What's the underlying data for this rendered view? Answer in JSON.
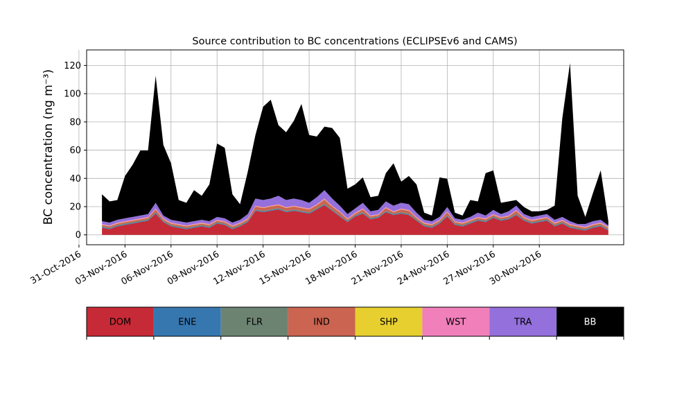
{
  "chart_data": {
    "type": "area",
    "stacked": true,
    "title": "Source contribution to BC concentrations (ECLIPSEv6 and CAMS)",
    "xlabel": "",
    "ylabel": "BC concentration (ng m⁻³)",
    "ylim": [
      -7,
      131
    ],
    "xlim": [
      "2016-10-31T12:00",
      "2016-12-05T12:00"
    ],
    "yticks": [
      0,
      20,
      40,
      60,
      80,
      100,
      120
    ],
    "xticks": [
      "31-Oct-2016",
      "03-Nov-2016",
      "06-Nov-2016",
      "09-Nov-2016",
      "12-Nov-2016",
      "15-Nov-2016",
      "18-Nov-2016",
      "21-Nov-2016",
      "24-Nov-2016",
      "27-Nov-2016",
      "30-Nov-2016"
    ],
    "grid": true,
    "x": [
      "2016-11-01T12:00",
      "2016-11-02T00:00",
      "2016-11-02T12:00",
      "2016-11-03T00:00",
      "2016-11-03T12:00",
      "2016-11-04T00:00",
      "2016-11-04T12:00",
      "2016-11-05T00:00",
      "2016-11-05T12:00",
      "2016-11-06T00:00",
      "2016-11-06T12:00",
      "2016-11-07T00:00",
      "2016-11-07T12:00",
      "2016-11-08T00:00",
      "2016-11-08T12:00",
      "2016-11-09T00:00",
      "2016-11-09T12:00",
      "2016-11-10T00:00",
      "2016-11-10T12:00",
      "2016-11-11T00:00",
      "2016-11-11T12:00",
      "2016-11-12T00:00",
      "2016-11-12T12:00",
      "2016-11-13T00:00",
      "2016-11-13T12:00",
      "2016-11-14T00:00",
      "2016-11-14T12:00",
      "2016-11-15T00:00",
      "2016-11-15T12:00",
      "2016-11-16T00:00",
      "2016-11-16T12:00",
      "2016-11-17T00:00",
      "2016-11-17T12:00",
      "2016-11-18T00:00",
      "2016-11-18T12:00",
      "2016-11-19T00:00",
      "2016-11-19T12:00",
      "2016-11-20T00:00",
      "2016-11-20T12:00",
      "2016-11-21T00:00",
      "2016-11-21T12:00",
      "2016-11-22T00:00",
      "2016-11-22T12:00",
      "2016-11-23T00:00",
      "2016-11-23T12:00",
      "2016-11-24T00:00",
      "2016-11-24T12:00",
      "2016-11-25T00:00",
      "2016-11-25T12:00",
      "2016-11-26T00:00",
      "2016-11-26T12:00",
      "2016-11-27T00:00",
      "2016-11-27T12:00",
      "2016-11-28T00:00",
      "2016-11-28T12:00",
      "2016-11-29T00:00",
      "2016-11-29T12:00",
      "2016-11-30T00:00",
      "2016-11-30T12:00",
      "2016-12-01T00:00",
      "2016-12-01T12:00",
      "2016-12-02T00:00",
      "2016-12-02T12:00",
      "2016-12-03T00:00",
      "2016-12-03T12:00",
      "2016-12-04T00:00",
      "2016-12-04T12:00"
    ],
    "series": [
      {
        "name": "DOM",
        "color": "#c62a36",
        "values": [
          5,
          4,
          6,
          7,
          8,
          9,
          10,
          15,
          9,
          6,
          5,
          4,
          5,
          6,
          5,
          8,
          7,
          4,
          6,
          9,
          17,
          16,
          17,
          18,
          16,
          17,
          16,
          15,
          18,
          21,
          17,
          13,
          9,
          13,
          15,
          11,
          12,
          16,
          14,
          15,
          14,
          10,
          6,
          5,
          8,
          13,
          7,
          6,
          8,
          10,
          9,
          12,
          10,
          11,
          14,
          10,
          8,
          9,
          10,
          6,
          8,
          5,
          4,
          3,
          5,
          6,
          3
        ]
      },
      {
        "name": "ENE",
        "color": "#3777b0",
        "values": [
          0.5,
          0.5,
          0.5,
          0.5,
          0.5,
          0.5,
          0.5,
          0.5,
          0.5,
          0.5,
          0.5,
          0.5,
          0.5,
          0.5,
          0.5,
          0.5,
          0.5,
          0.5,
          0.5,
          0.5,
          0.5,
          0.5,
          0.5,
          0.5,
          0.5,
          0.5,
          0.5,
          0.5,
          0.5,
          0.5,
          0.5,
          0.5,
          0.5,
          0.5,
          0.5,
          0.5,
          0.5,
          0.5,
          0.5,
          0.5,
          0.5,
          0.5,
          0.5,
          0.5,
          0.5,
          0.5,
          0.5,
          0.5,
          0.5,
          0.5,
          0.5,
          0.5,
          0.5,
          0.5,
          0.5,
          0.5,
          0.5,
          0.5,
          0.5,
          0.5,
          0.5,
          0.5,
          0.5,
          0.5,
          0.5,
          0.5,
          0.5
        ]
      },
      {
        "name": "FLR",
        "color": "#6c8372",
        "values": [
          0.5,
          0.5,
          0.5,
          0.5,
          0.5,
          0.5,
          0.5,
          0.5,
          0.5,
          0.5,
          0.5,
          0.5,
          0.5,
          0.5,
          0.5,
          0.5,
          0.5,
          0.5,
          0.5,
          0.5,
          0.5,
          0.5,
          0.5,
          0.5,
          0.5,
          0.5,
          0.5,
          0.5,
          0.5,
          0.5,
          0.5,
          0.5,
          0.5,
          0.5,
          0.5,
          0.5,
          0.5,
          0.5,
          0.5,
          0.5,
          0.5,
          0.5,
          0.5,
          0.5,
          0.5,
          0.5,
          0.5,
          0.5,
          0.5,
          0.5,
          0.5,
          0.5,
          0.5,
          0.5,
          0.5,
          0.5,
          0.5,
          0.5,
          0.5,
          0.5,
          0.5,
          0.5,
          0.5,
          0.5,
          0.5,
          0.5,
          0.5
        ]
      },
      {
        "name": "IND",
        "color": "#cb6450",
        "values": [
          1,
          1,
          1,
          1,
          1,
          1,
          1,
          2,
          1,
          1,
          1,
          1,
          1,
          1,
          1,
          1,
          1,
          1,
          1,
          1,
          2,
          2,
          2,
          2,
          2,
          2,
          2,
          2,
          2,
          3,
          2,
          2,
          1,
          1,
          2,
          1,
          1,
          2,
          1,
          2,
          2,
          1,
          1,
          1,
          1,
          2,
          1,
          1,
          1,
          1,
          1,
          1,
          1,
          1,
          2,
          1,
          1,
          1,
          1,
          1,
          1,
          1,
          1,
          1,
          1,
          1,
          1
        ]
      },
      {
        "name": "SHP",
        "color": "#e6cf2f",
        "values": [
          0.2,
          0.2,
          0.2,
          0.2,
          0.2,
          0.2,
          0.2,
          0.2,
          0.2,
          0.2,
          0.2,
          0.2,
          0.2,
          0.2,
          0.2,
          0.2,
          0.2,
          0.2,
          0.2,
          0.2,
          0.2,
          0.2,
          0.2,
          0.2,
          0.2,
          0.2,
          0.2,
          0.2,
          0.2,
          0.2,
          0.2,
          0.2,
          0.2,
          0.2,
          0.2,
          0.2,
          0.2,
          0.2,
          0.2,
          0.2,
          0.2,
          0.2,
          0.2,
          0.2,
          0.2,
          0.2,
          0.2,
          0.2,
          0.2,
          0.2,
          0.2,
          0.2,
          0.2,
          0.2,
          0.2,
          0.2,
          0.2,
          0.2,
          0.2,
          0.2,
          0.2,
          0.2,
          0.2,
          0.2,
          0.2,
          0.2,
          0.2
        ]
      },
      {
        "name": "WST",
        "color": "#f07fba",
        "values": [
          0.5,
          0.5,
          0.5,
          0.5,
          0.5,
          0.5,
          0.5,
          0.5,
          0.5,
          0.5,
          0.5,
          0.5,
          0.5,
          0.5,
          0.5,
          0.5,
          0.5,
          0.5,
          0.5,
          0.5,
          0.5,
          0.5,
          0.5,
          0.5,
          0.5,
          0.5,
          0.5,
          0.5,
          0.5,
          0.5,
          0.5,
          0.5,
          0.5,
          0.5,
          0.5,
          0.5,
          0.5,
          0.5,
          0.5,
          0.5,
          0.5,
          0.5,
          0.5,
          0.5,
          0.5,
          0.5,
          0.5,
          0.5,
          0.5,
          0.5,
          0.5,
          0.5,
          0.5,
          0.5,
          0.5,
          0.5,
          0.5,
          0.5,
          0.5,
          0.5,
          0.5,
          0.5,
          0.5,
          0.5,
          0.5,
          0.5,
          0.5
        ]
      },
      {
        "name": "TRA",
        "color": "#9370db",
        "values": [
          2,
          2,
          2,
          2,
          2,
          2,
          2,
          4,
          2,
          2,
          2,
          2,
          2,
          2,
          2,
          2,
          2,
          2,
          2,
          3,
          5,
          5,
          5,
          6,
          5,
          5,
          5,
          4,
          5,
          6,
          5,
          4,
          3,
          3,
          4,
          3,
          3,
          4,
          4,
          4,
          4,
          3,
          2,
          2,
          2,
          3,
          2,
          2,
          2,
          3,
          2,
          3,
          2,
          3,
          3,
          2,
          2,
          2,
          2,
          2,
          2,
          2,
          1,
          2,
          2,
          2,
          1
        ]
      },
      {
        "name": "BB",
        "color": "#000000",
        "values": [
          19,
          15,
          14,
          30,
          37,
          46,
          45,
          90,
          50,
          40,
          15,
          14,
          22,
          17,
          26,
          52,
          50,
          20,
          11,
          30,
          45,
          66,
          70,
          50,
          48,
          55,
          68,
          48,
          43,
          45,
          50,
          48,
          18,
          17,
          18,
          10,
          10,
          20,
          30,
          15,
          20,
          20,
          5,
          4,
          28,
          20,
          4,
          3,
          12,
          8,
          30,
          28,
          8,
          7,
          4,
          5,
          4,
          3,
          3,
          10,
          70,
          112,
          20,
          5,
          20,
          35,
          3
        ]
      }
    ]
  }
}
